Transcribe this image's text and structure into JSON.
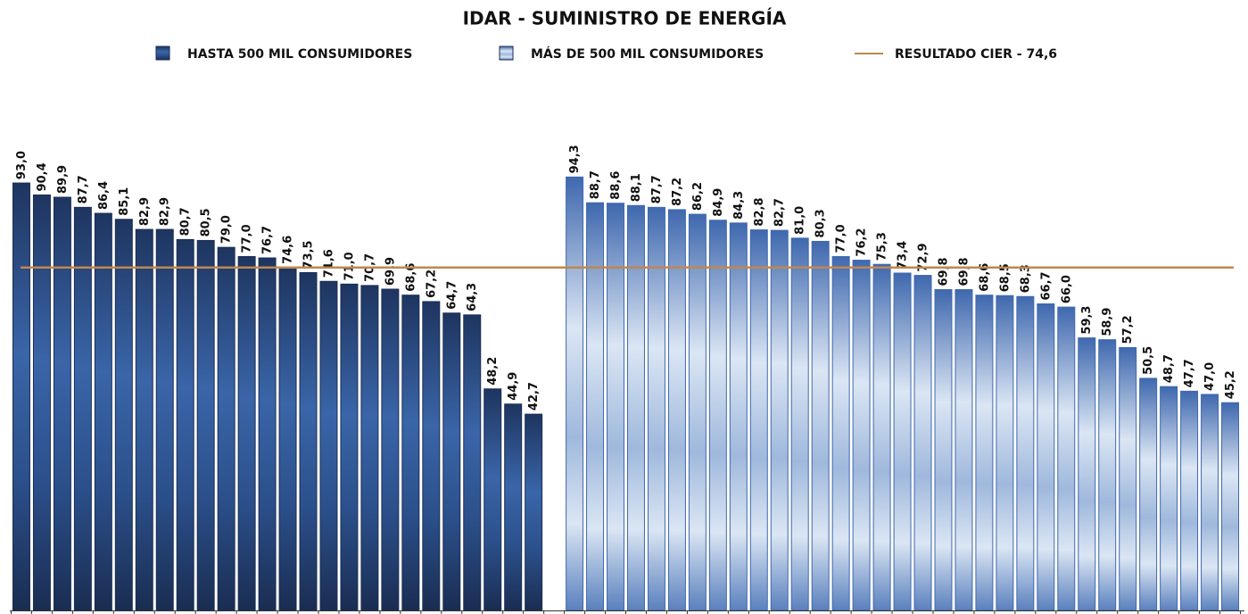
{
  "chart_data": {
    "type": "bar",
    "title": "IDAR - SUMINISTRO DE ENERGÍA",
    "ylim": [
      0,
      100
    ],
    "series": [
      {
        "name": "HASTA 500 MIL CONSUMIDORES",
        "color": "#2b4f8a",
        "values": [
          93.0,
          90.4,
          89.9,
          87.7,
          86.4,
          85.1,
          82.9,
          82.9,
          80.7,
          80.5,
          79.0,
          77.0,
          76.7,
          74.6,
          73.5,
          71.6,
          71.0,
          70.7,
          69.9,
          68.6,
          67.2,
          64.7,
          64.3,
          48.2,
          44.9,
          42.7
        ],
        "value_labels": [
          "93,0",
          "90,4",
          "89,9",
          "87,7",
          "86,4",
          "85,1",
          "82,9",
          "82,9",
          "80,7",
          "80,5",
          "79,0",
          "77,0",
          "76,7",
          "74,6",
          "73,5",
          "71,6",
          "71,0",
          "70,7",
          "69,9",
          "68,6",
          "67,2",
          "64,7",
          "64,3",
          "48,2",
          "44,9",
          "42,7"
        ]
      },
      {
        "name": "MÁS DE 500 MIL CONSUMIDORES",
        "color": "#c9d9ee",
        "values": [
          94.3,
          88.7,
          88.6,
          88.1,
          87.7,
          87.2,
          86.2,
          84.9,
          84.3,
          82.8,
          82.7,
          81.0,
          80.3,
          77.0,
          76.2,
          75.3,
          73.4,
          72.9,
          69.8,
          69.8,
          68.6,
          68.5,
          68.3,
          66.7,
          66.0,
          59.3,
          58.9,
          57.2,
          50.5,
          48.7,
          47.7,
          47.0,
          45.2
        ],
        "value_labels": [
          "94,3",
          "88,7",
          "88,6",
          "88,1",
          "87,7",
          "87,2",
          "86,2",
          "84,9",
          "84,3",
          "82,8",
          "82,7",
          "81,0",
          "80,3",
          "77,0",
          "76,2",
          "75,3",
          "73,4",
          "72,9",
          "69,8",
          "69,8",
          "68,6",
          "68,5",
          "68,3",
          "66,7",
          "66,0",
          "59,3",
          "58,9",
          "57,2",
          "50,5",
          "48,7",
          "47,7",
          "47,0",
          "45,2"
        ]
      }
    ],
    "reference_line": {
      "name": "RESULTADO CIER - 74,6",
      "value": 74.6,
      "color": "#c0874f"
    }
  }
}
